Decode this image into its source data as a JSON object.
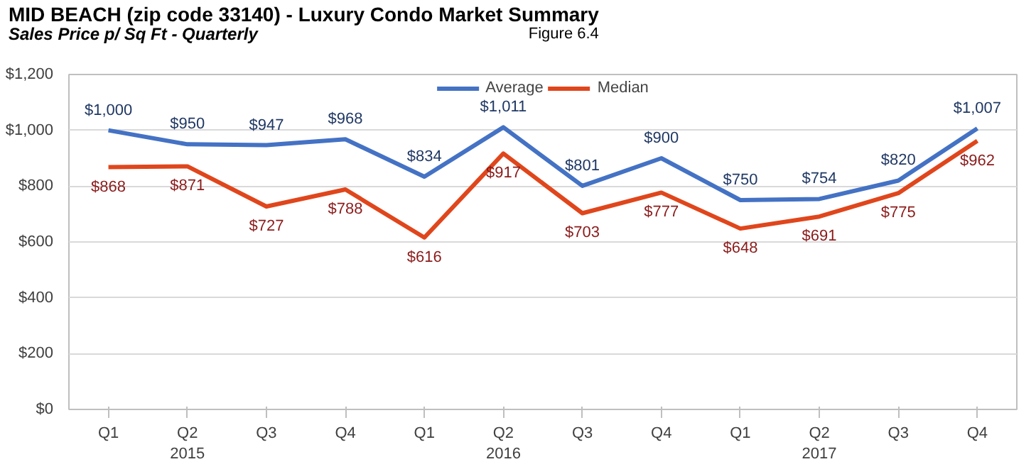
{
  "chart_data": {
    "type": "line",
    "title": "MID BEACH (zip code 33140) - Luxury Condo Market Summary",
    "subtitle": "Sales Price p/ Sq Ft - Quarterly",
    "annotations": [
      "Figure 6.4"
    ],
    "categories": [
      "Q1",
      "Q2\n2015",
      "Q3",
      "Q4",
      "Q1",
      "Q2\n2016",
      "Q3",
      "Q4",
      "Q1",
      "Q2\n2017",
      "Q3",
      "Q4"
    ],
    "series": [
      {
        "name": "Average",
        "color": "#4472c4",
        "values": [
          1000,
          950,
          947,
          968,
          834,
          1011,
          801,
          900,
          750,
          754,
          820,
          1007
        ],
        "value_labels": [
          "$1,000",
          "$950",
          "$947",
          "$968",
          "$834",
          "$1,011",
          "$801",
          "$900",
          "$750",
          "$754",
          "$820",
          "$1,007"
        ]
      },
      {
        "name": "Median",
        "color": "#e0461c",
        "values": [
          868,
          871,
          727,
          788,
          616,
          917,
          703,
          777,
          648,
          691,
          775,
          962
        ],
        "value_labels": [
          "$868",
          "$871",
          "$727",
          "$788",
          "$616",
          "$917",
          "$703",
          "$777",
          "$648",
          "$691",
          "$775",
          "$962"
        ]
      }
    ],
    "ylim": [
      0,
      1200
    ],
    "yticks": [
      {
        "value": 0,
        "label": "$0"
      },
      {
        "value": 200,
        "label": "$200"
      },
      {
        "value": 400,
        "label": "$400"
      },
      {
        "value": 600,
        "label": "$600"
      },
      {
        "value": 800,
        "label": "$800"
      },
      {
        "value": 1000,
        "label": "$1,000"
      },
      {
        "value": 1200,
        "label": "$1,200"
      }
    ],
    "grid": "y",
    "legend": "top",
    "marker": "none",
    "line_style": "solid"
  }
}
